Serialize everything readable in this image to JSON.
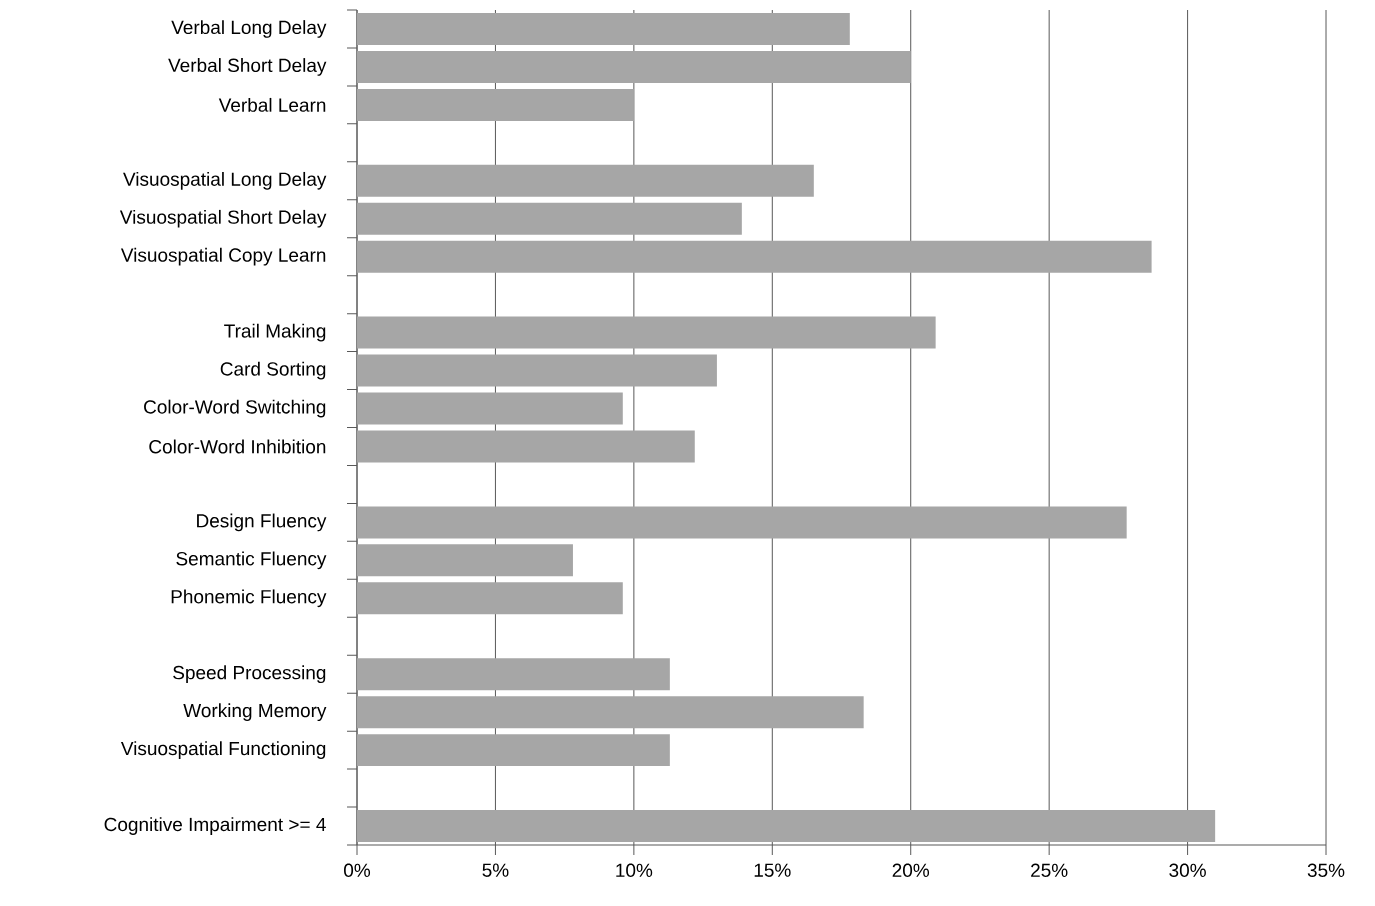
{
  "chart_data": {
    "type": "bar",
    "orientation": "horizontal",
    "color": "#a6a6a6",
    "grid": "x",
    "categories": [
      "Verbal Long Delay",
      "Verbal Short Delay",
      "Verbal Learn",
      null,
      "Visuospatial Long Delay",
      "Visuospatial Short Delay",
      "Visuospatial Copy Learn",
      null,
      "Trail Making",
      "Card Sorting",
      "Color-Word Switching",
      "Color-Word Inhibition",
      null,
      "Design Fluency",
      "Semantic Fluency",
      "Phonemic Fluency",
      null,
      "Speed Processing",
      "Working Memory",
      "Visuospatial Functioning",
      null,
      "Cognitive Impairment >= 4"
    ],
    "values": [
      17.8,
      20.0,
      10.0,
      null,
      16.5,
      13.9,
      28.7,
      null,
      20.9,
      13.0,
      9.6,
      12.2,
      null,
      27.8,
      7.8,
      9.6,
      null,
      11.3,
      18.3,
      11.3,
      null,
      31.0
    ],
    "xlim": [
      0,
      35
    ],
    "xticks": [
      {
        "value": 0,
        "label": "0%"
      },
      {
        "value": 5,
        "label": "5%"
      },
      {
        "value": 10,
        "label": "10%"
      },
      {
        "value": 15,
        "label": "15%"
      },
      {
        "value": 20,
        "label": "20%"
      },
      {
        "value": 25,
        "label": "25%"
      },
      {
        "value": 30,
        "label": "30%"
      },
      {
        "value": 35,
        "label": "35%"
      }
    ]
  }
}
